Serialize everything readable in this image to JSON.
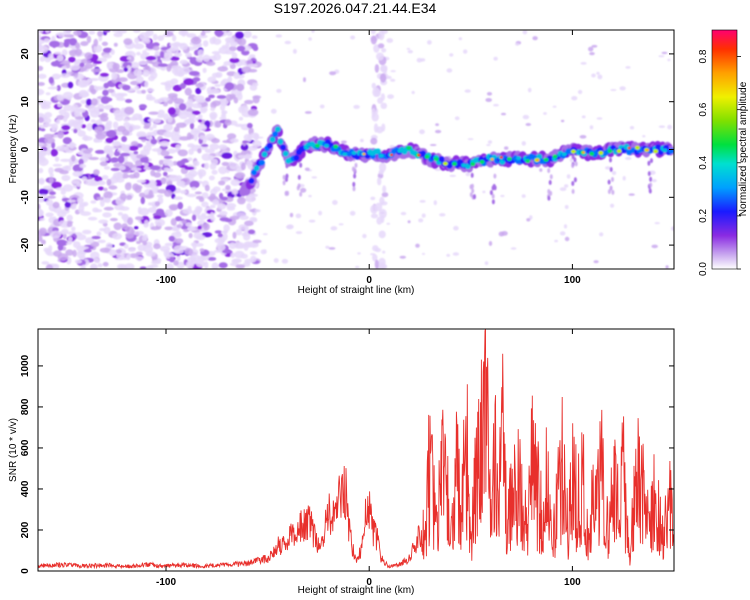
{
  "title": "S197.2026.047.21.44.E34",
  "chart_data": [
    {
      "type": "heatmap",
      "title": "S197.2026.047.21.44.E34",
      "xlabel": "Height of straight line (km)",
      "ylabel": "Frequency (Hz)",
      "xlim": [
        -163,
        150
      ],
      "ylim": [
        -25,
        25
      ],
      "x_ticks": [
        -100,
        0,
        100
      ],
      "x_tick_labels": [
        "-100",
        "0",
        "100"
      ],
      "y_ticks": [
        -20,
        -10,
        0,
        10,
        20
      ],
      "y_tick_labels": [
        "-20",
        "-10",
        "0",
        "10",
        "20"
      ],
      "colorbar": {
        "label": "Normalized spectral amplitude",
        "range": [
          0.0,
          0.9
        ],
        "ticks": [
          0.0,
          0.2,
          0.4,
          0.6,
          0.8
        ],
        "tick_labels": [
          "0.0",
          "0.2",
          "0.4",
          "0.6",
          "0.8"
        ],
        "colormap": "rainbow"
      },
      "ridge": {
        "x": [
          -60,
          -55,
          -50,
          -45,
          -40,
          -30,
          -20,
          -10,
          0,
          10,
          20,
          30,
          40,
          50,
          60,
          70,
          80,
          90,
          100,
          110,
          120,
          130,
          140,
          148
        ],
        "freq": [
          -8,
          -4,
          0,
          4,
          -3,
          1,
          1,
          -1,
          -1,
          -1,
          0,
          -2,
          -3,
          -3,
          -2,
          -2,
          -2,
          -2,
          0,
          -1,
          0,
          0,
          0,
          0
        ]
      }
    },
    {
      "type": "line",
      "xlabel": "Height of straight line (km)",
      "ylabel": "SNR (10 * v/v)",
      "xlim": [
        -163,
        150
      ],
      "ylim": [
        0,
        1180
      ],
      "x_ticks": [
        -100,
        0,
        100
      ],
      "x_tick_labels": [
        "-100",
        "0",
        "100"
      ],
      "y_ticks": [
        0,
        200,
        400,
        600,
        800,
        1000
      ],
      "y_tick_labels": [
        "0",
        "200",
        "400",
        "600",
        "800",
        "1000"
      ],
      "series": [
        {
          "name": "SNR",
          "color": "#e8302c",
          "x": [
            -163,
            -150,
            -140,
            -130,
            -120,
            -110,
            -100,
            -90,
            -80,
            -70,
            -60,
            -50,
            -45,
            -40,
            -35,
            -30,
            -25,
            -22,
            -20,
            -18,
            -15,
            -12,
            -10,
            -8,
            -6,
            -4,
            -2,
            0,
            2,
            4,
            6,
            8,
            10,
            15,
            20,
            25,
            28,
            30,
            33,
            35,
            37,
            40,
            43,
            45,
            48,
            50,
            52,
            55,
            58,
            60,
            62,
            64,
            66,
            68,
            70,
            72,
            75,
            78,
            80,
            83,
            85,
            88,
            90,
            93,
            95,
            98,
            100,
            103,
            105,
            108,
            110,
            113,
            115,
            118,
            120,
            123,
            125,
            128,
            130,
            133,
            135,
            138,
            140,
            143,
            145,
            147,
            149,
            150
          ],
          "y": [
            25,
            30,
            25,
            28,
            22,
            30,
            25,
            28,
            24,
            30,
            35,
            60,
            120,
            150,
            200,
            250,
            120,
            200,
            300,
            250,
            350,
            430,
            200,
            100,
            50,
            100,
            250,
            300,
            200,
            150,
            60,
            40,
            20,
            30,
            60,
            200,
            400,
            880,
            300,
            600,
            900,
            200,
            800,
            400,
            950,
            200,
            700,
            1000,
            1180,
            300,
            900,
            600,
            1050,
            250,
            700,
            950,
            500,
            300,
            800,
            600,
            400,
            750,
            200,
            600,
            780,
            300,
            700,
            550,
            740,
            200,
            600,
            650,
            750,
            200,
            720,
            400,
            770,
            100,
            600,
            700,
            550,
            300,
            660,
            400,
            200,
            560,
            420,
            480
          ]
        }
      ]
    }
  ]
}
